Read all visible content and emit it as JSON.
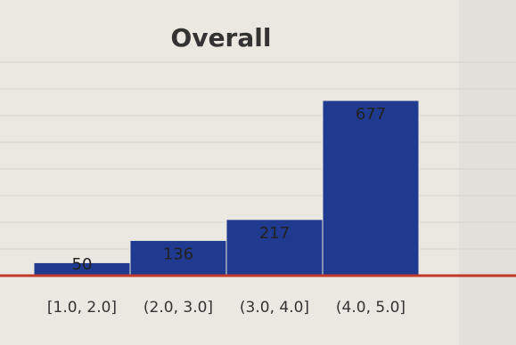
{
  "chart_data": {
    "type": "bar",
    "title": "Overall",
    "categories": [
      "[1.0, 2.0]",
      "(2.0, 3.0]",
      "(3.0, 4.0]",
      "(4.0, 5.0]"
    ],
    "values": [
      50,
      136,
      217,
      677
    ],
    "color": "#1f3a8f"
  }
}
